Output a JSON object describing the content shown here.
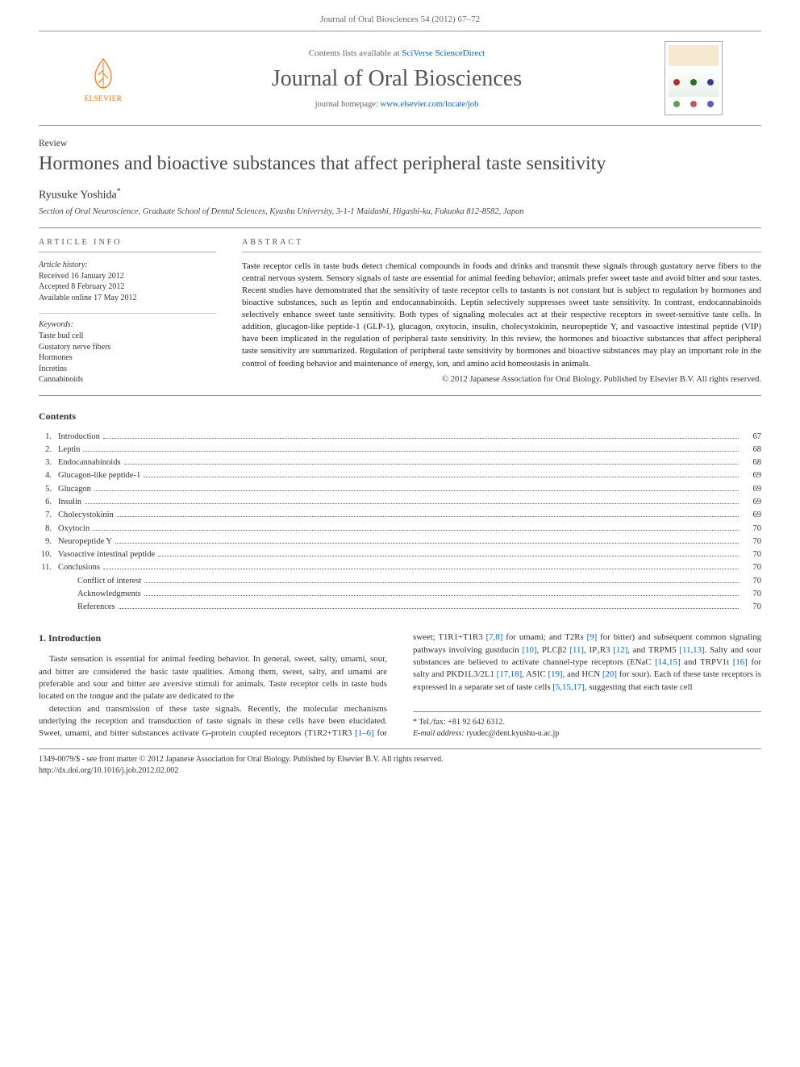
{
  "header": {
    "running_head": "Journal of Oral Biosciences 54 (2012) 67–72",
    "contents_prefix": "Contents lists available at ",
    "contents_link_text": "SciVerse ScienceDirect",
    "journal_name": "Journal of Oral Biosciences",
    "homepage_prefix": "journal homepage: ",
    "homepage_url": "www.elsevier.com/locate/job",
    "elsevier_text": "ELSEVIER",
    "elsevier_color": "#ff6c00",
    "cover_dots": [
      "#b03030",
      "#2a6e2a",
      "#3a3a8a",
      "#c98f00"
    ]
  },
  "article": {
    "type_label": "Review",
    "title": "Hormones and bioactive substances that affect peripheral taste sensitivity",
    "author_name": "Ryusuke Yoshida",
    "author_marker": "*",
    "affiliation": "Section of Oral Neuroscience, Graduate School of Dental Sciences, Kyushu University, 3-1-1 Maidashi, Higashi-ku, Fukuoka 812-8582, Japan"
  },
  "info": {
    "section_label": "ARTICLE INFO",
    "history_head": "Article history:",
    "received": "Received 16 January 2012",
    "accepted": "Accepted 8 February 2012",
    "online": "Available online 17 May 2012",
    "keywords_head": "Keywords:",
    "keywords": [
      "Taste bud cell",
      "Gustatory nerve fibers",
      "Hormones",
      "Incretins",
      "Cannabinoids"
    ]
  },
  "abstract": {
    "section_label": "ABSTRACT",
    "text": "Taste receptor cells in taste buds detect chemical compounds in foods and drinks and transmit these signals through gustatory nerve fibers to the central nervous system. Sensory signals of taste are essential for animal feeding behavior; animals prefer sweet taste and avoid bitter and sour tastes. Recent studies have demonstrated that the sensitivity of taste receptor cells to tastants is not constant but is subject to regulation by hormones and bioactive substances, such as leptin and endocannabinoids. Leptin selectively suppresses sweet taste sensitivity. In contrast, endocannabinoids selectively enhance sweet taste sensitivity. Both types of signaling molecules act at their respective receptors in sweet-sensitive taste cells. In addition, glucagon-like peptide-1 (GLP-1), glucagon, oxytocin, insulin, cholecystokinin, neuropeptide Y, and vasoactive intestinal peptide (VIP) have been implicated in the regulation of peripheral taste sensitivity. In this review, the hormones and bioactive substances that affect peripheral taste sensitivity are summarized. Regulation of peripheral taste sensitivity by hormones and bioactive substances may play an important role in the control of feeding behavior and maintenance of energy, ion, and amino acid homeostasis in animals.",
    "copyright": "© 2012 Japanese Association for Oral Biology. Published by Elsevier B.V. All rights reserved."
  },
  "contents": {
    "head": "Contents",
    "items": [
      {
        "num": "1.",
        "label": "Introduction",
        "page": "67"
      },
      {
        "num": "2.",
        "label": "Leptin",
        "page": "68"
      },
      {
        "num": "3.",
        "label": "Endocannabinoids",
        "page": "68"
      },
      {
        "num": "4.",
        "label": "Glucagon-like peptide-1",
        "page": "69"
      },
      {
        "num": "5.",
        "label": "Glucagon",
        "page": "69"
      },
      {
        "num": "6.",
        "label": "Insulin",
        "page": "69"
      },
      {
        "num": "7.",
        "label": "Cholecystokinin",
        "page": "69"
      },
      {
        "num": "8.",
        "label": "Oxytocin",
        "page": "70"
      },
      {
        "num": "9.",
        "label": "Neuropeptide Y",
        "page": "70"
      },
      {
        "num": "10.",
        "label": "Vasoactive intestinal peptide",
        "page": "70"
      },
      {
        "num": "11.",
        "label": "Conclusions",
        "page": "70"
      }
    ],
    "sub_items": [
      {
        "label": "Conflict of interest",
        "page": "70"
      },
      {
        "label": "Acknowledgments",
        "page": "70"
      },
      {
        "label": "References",
        "page": "70"
      }
    ]
  },
  "intro": {
    "head": "1.  Introduction",
    "para1": "Taste sensation is essential for animal feeding behavior. In general, sweet, salty, umami, sour, and bitter are considered the basic taste qualities. Among them, sweet, salty, and umami are preferable and sour and bitter are aversive stimuli for animals. Taste receptor cells in taste buds located on the tongue and the palate are dedicated to the",
    "para2_pre": "detection and transmission of these taste signals. Recently, the molecular mechanisms underlying the reception and transduction of taste signals in these cells have been elucidated. Sweet, umami, and bitter substances activate G-protein coupled receptors (T1R2+T1R3 ",
    "ref1": "[1–6]",
    "para2_mid1": " for sweet; T1R1+T1R3 ",
    "ref2": "[7,8]",
    "para2_mid2": " for umami; and T2Rs ",
    "ref3": "[9]",
    "para2_mid3": " for bitter) and subsequent common signaling pathways involving gustducin ",
    "ref4": "[10]",
    "para2_mid4": ", PLCβ2 ",
    "ref5": "[11]",
    "para2_mid5": ", IP₃R3 ",
    "ref6": "[12]",
    "para2_mid6": ", and TRPM5 ",
    "ref7": "[11,13]",
    "para2_mid7": ". Salty and sour substances are believed to activate channel-type receptors (ENaC ",
    "ref8": "[14,15]",
    "para2_mid8": " and TRPV1t ",
    "ref9": "[16]",
    "para2_mid9": " for salty and PKD1L3/2L1 ",
    "ref10": "[17,18]",
    "para2_mid10": ", ASIC ",
    "ref11": "[19]",
    "para2_mid11": ", and HCN ",
    "ref12": "[20]",
    "para2_mid12": " for sour). Each of these taste receptors is expressed in a separate set of taste cells ",
    "ref13": "[5,15,17]",
    "para2_end": ", suggesting that each taste cell"
  },
  "footnote": {
    "corr": "* Tel./fax: +81 92 642 6312.",
    "email_label": "E-mail address:",
    "email": "ryudec@dent.kyushu-u.ac.jp"
  },
  "footer": {
    "line1": "1349-0079/$ - see front matter © 2012 Japanese Association for Oral Biology. Published by Elsevier B.V. All rights reserved.",
    "line2": "http://dx.doi.org/10.1016/j.job.2012.02.002"
  },
  "colors": {
    "link": "#0066cc",
    "rule": "#888888",
    "text": "#333333"
  }
}
